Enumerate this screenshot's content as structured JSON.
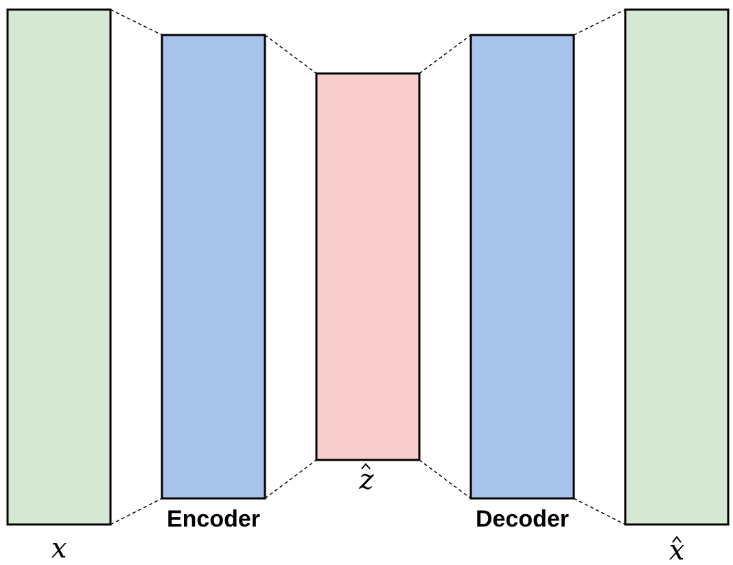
{
  "colors": {
    "input_block": "#d5e8d4",
    "encoder_block": "#a9c4eb",
    "latent_block": "#f8cecc",
    "decoder_block": "#a9c4eb",
    "output_block": "#d5e8d4"
  },
  "labels": {
    "input": "x",
    "encoder": "Encoder",
    "latent": "z",
    "decoder": "Decoder",
    "output": "x"
  }
}
